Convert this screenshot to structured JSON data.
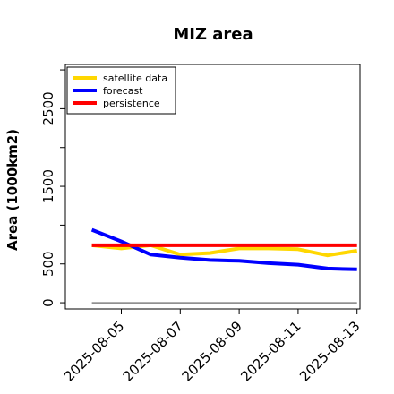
{
  "chart_data": {
    "type": "line",
    "title": "MIZ area",
    "xlabel": "",
    "ylabel": "Area (1000km2)",
    "x": [
      "2025-08-04",
      "2025-08-05",
      "2025-08-06",
      "2025-08-07",
      "2025-08-08",
      "2025-08-09",
      "2025-08-10",
      "2025-08-11",
      "2025-08-12",
      "2025-08-13"
    ],
    "x_tick_labels": [
      "2025-08-05",
      "2025-08-07",
      "2025-08-09",
      "2025-08-11",
      "2025-08-13"
    ],
    "x_tick_colors": [
      "#228b22",
      "#000000",
      "#000000",
      "#000000",
      "#000000"
    ],
    "xlim": [
      "2025-08-03.1",
      "2025-08-13.1"
    ],
    "ylim": [
      -80,
      3070
    ],
    "y_ticks": [
      0,
      500,
      1500,
      2500
    ],
    "y_minor_ticks": [
      1000,
      2000,
      3000
    ],
    "grid": false,
    "legend_position": "top-left",
    "series": [
      {
        "name": "satellite data",
        "color": "#ffd700",
        "values": [
          740,
          700,
          740,
          620,
          640,
          700,
          700,
          690,
          610,
          670
        ]
      },
      {
        "name": "forecast",
        "color": "#0000ff",
        "values": [
          940,
          790,
          620,
          580,
          550,
          540,
          510,
          490,
          440,
          430
        ]
      },
      {
        "name": "persistence",
        "color": "#ff0000",
        "values": [
          740,
          740,
          740,
          740,
          740,
          740,
          740,
          740,
          740,
          740
        ]
      }
    ],
    "reference_line": {
      "value": 0,
      "color": "#808080"
    }
  }
}
